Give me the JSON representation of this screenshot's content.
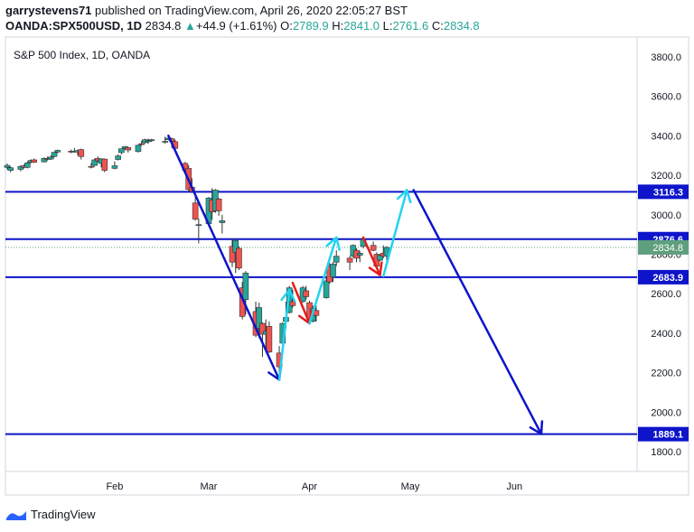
{
  "header": {
    "author": "garrystevens71",
    "published_text": "published on TradingView.com, April 26, 2020 22:05:27 BST",
    "symbol": "OANDA:SPX500USD, 1D",
    "last": "2834.8",
    "change_arrow": "▲",
    "change": "+44.9 (+1.61%)",
    "o_label": "O:",
    "o_value": "2789.9",
    "h_label": "H:",
    "h_value": "2841.0",
    "l_label": "L:",
    "l_value": "2761.6",
    "c_label": "C:",
    "c_value": "2834.8"
  },
  "footer": {
    "brand": "TradingView",
    "logo_icon": "tradingview-logo-icon"
  },
  "colors": {
    "up": "#26a69a",
    "down": "#ef5350",
    "line": "#0d14c9",
    "cyan": "#22d3f0",
    "red_arrow": "#e51b1b",
    "last_label": "#5e9f7d"
  },
  "chart_data": {
    "type": "candlestick",
    "title": "S&P 500 Index, 1D, OANDA",
    "x_labels": [
      "Feb",
      "Mar",
      "Apr",
      "May",
      "Jun"
    ],
    "y_ticks": [
      "3800.0",
      "3600.0",
      "3400.0",
      "3200.0",
      "3000.0",
      "2800.0",
      "2600.0",
      "2400.0",
      "2200.0",
      "2000.0",
      "1800.0"
    ],
    "ylim": [
      1700,
      3900
    ],
    "last_price_label": "2834.8",
    "horizontal_levels": [
      {
        "value": 3116.3,
        "label": "3116.3"
      },
      {
        "value": 2876.6,
        "label": "2876.6"
      },
      {
        "value": 2683.9,
        "label": "2683.9"
      },
      {
        "value": 1889.1,
        "label": "1889.1"
      }
    ],
    "candles": [
      {
        "d": "2020-01-02",
        "o": 3240,
        "h": 3260,
        "l": 3230,
        "c": 3250
      },
      {
        "d": "2020-01-03",
        "o": 3225,
        "h": 3245,
        "l": 3215,
        "c": 3238
      },
      {
        "d": "2020-01-06",
        "o": 3230,
        "h": 3250,
        "l": 3220,
        "c": 3245
      },
      {
        "d": "2020-01-07",
        "o": 3248,
        "h": 3255,
        "l": 3235,
        "c": 3240
      },
      {
        "d": "2020-01-08",
        "o": 3240,
        "h": 3270,
        "l": 3235,
        "c": 3262
      },
      {
        "d": "2020-01-09",
        "o": 3265,
        "h": 3280,
        "l": 3260,
        "c": 3275
      },
      {
        "d": "2020-01-10",
        "o": 3278,
        "h": 3285,
        "l": 3262,
        "c": 3266
      },
      {
        "d": "2020-01-13",
        "o": 3268,
        "h": 3290,
        "l": 3265,
        "c": 3286
      },
      {
        "d": "2020-01-14",
        "o": 3285,
        "h": 3295,
        "l": 3275,
        "c": 3282
      },
      {
        "d": "2020-01-15",
        "o": 3282,
        "h": 3300,
        "l": 3278,
        "c": 3292
      },
      {
        "d": "2020-01-16",
        "o": 3295,
        "h": 3318,
        "l": 3292,
        "c": 3316
      },
      {
        "d": "2020-01-17",
        "o": 3318,
        "h": 3330,
        "l": 3312,
        "c": 3326
      },
      {
        "d": "2020-01-21",
        "o": 3322,
        "h": 3330,
        "l": 3312,
        "c": 3320
      },
      {
        "d": "2020-01-22",
        "o": 3322,
        "h": 3338,
        "l": 3315,
        "c": 3322
      },
      {
        "d": "2020-01-23",
        "o": 3318,
        "h": 3330,
        "l": 3300,
        "c": 3325
      },
      {
        "d": "2020-01-24",
        "o": 3330,
        "h": 3335,
        "l": 3280,
        "c": 3295
      },
      {
        "d": "2020-01-27",
        "o": 3245,
        "h": 3262,
        "l": 3235,
        "c": 3244
      },
      {
        "d": "2020-01-28",
        "o": 3250,
        "h": 3285,
        "l": 3245,
        "c": 3278
      },
      {
        "d": "2020-01-29",
        "o": 3285,
        "h": 3295,
        "l": 3265,
        "c": 3273
      },
      {
        "d": "2020-01-30",
        "o": 3260,
        "h": 3285,
        "l": 3240,
        "c": 3283
      },
      {
        "d": "2020-01-31",
        "o": 3282,
        "h": 3285,
        "l": 3215,
        "c": 3225
      },
      {
        "d": "2020-02-03",
        "o": 3235,
        "h": 3270,
        "l": 3230,
        "c": 3248
      },
      {
        "d": "2020-02-04",
        "o": 3280,
        "h": 3305,
        "l": 3275,
        "c": 3298
      },
      {
        "d": "2020-02-05",
        "o": 3315,
        "h": 3335,
        "l": 3305,
        "c": 3334
      },
      {
        "d": "2020-02-06",
        "o": 3335,
        "h": 3348,
        "l": 3330,
        "c": 3345
      },
      {
        "d": "2020-02-07",
        "o": 3340,
        "h": 3345,
        "l": 3315,
        "c": 3328
      },
      {
        "d": "2020-02-10",
        "o": 3320,
        "h": 3355,
        "l": 3315,
        "c": 3352
      },
      {
        "d": "2020-02-11",
        "o": 3360,
        "h": 3375,
        "l": 3350,
        "c": 3358
      },
      {
        "d": "2020-02-12",
        "o": 3365,
        "h": 3385,
        "l": 3360,
        "c": 3380
      },
      {
        "d": "2020-02-13",
        "o": 3370,
        "h": 3385,
        "l": 3360,
        "c": 3375
      },
      {
        "d": "2020-02-14",
        "o": 3378,
        "h": 3385,
        "l": 3370,
        "c": 3380
      },
      {
        "d": "2020-02-18",
        "o": 3370,
        "h": 3395,
        "l": 3360,
        "c": 3372
      },
      {
        "d": "2020-02-19",
        "o": 3380,
        "h": 3395,
        "l": 3378,
        "c": 3388
      },
      {
        "d": "2020-02-20",
        "o": 3385,
        "h": 3390,
        "l": 3340,
        "c": 3372
      },
      {
        "d": "2020-02-21",
        "o": 3370,
        "h": 3380,
        "l": 3320,
        "c": 3336
      },
      {
        "d": "2020-02-24",
        "o": 3260,
        "h": 3268,
        "l": 3215,
        "c": 3225
      },
      {
        "d": "2020-02-25",
        "o": 3235,
        "h": 3250,
        "l": 3120,
        "c": 3128
      },
      {
        "d": "2020-02-26",
        "o": 3140,
        "h": 3185,
        "l": 3110,
        "c": 3118
      },
      {
        "d": "2020-02-27",
        "o": 3060,
        "h": 3090,
        "l": 2970,
        "c": 2978
      },
      {
        "d": "2020-02-28",
        "o": 2950,
        "h": 2980,
        "l": 2855,
        "c": 2950
      },
      {
        "d": "2020-03-02",
        "o": 2955,
        "h": 3090,
        "l": 2945,
        "c": 3085
      },
      {
        "d": "2020-03-03",
        "o": 3075,
        "h": 3135,
        "l": 2975,
        "c": 3015
      },
      {
        "d": "2020-03-04",
        "o": 3020,
        "h": 3130,
        "l": 3010,
        "c": 3125
      },
      {
        "d": "2020-03-05",
        "o": 3080,
        "h": 3085,
        "l": 2995,
        "c": 3020
      },
      {
        "d": "2020-03-06",
        "o": 2960,
        "h": 3000,
        "l": 2905,
        "c": 2970
      },
      {
        "d": "2020-03-09",
        "o": 2840,
        "h": 2880,
        "l": 2735,
        "c": 2760
      },
      {
        "d": "2020-03-10",
        "o": 2810,
        "h": 2880,
        "l": 2705,
        "c": 2870
      },
      {
        "d": "2020-03-11",
        "o": 2830,
        "h": 2840,
        "l": 2720,
        "c": 2730
      },
      {
        "d": "2020-03-12",
        "o": 2630,
        "h": 2660,
        "l": 2470,
        "c": 2485
      },
      {
        "d": "2020-03-13",
        "o": 2570,
        "h": 2715,
        "l": 2495,
        "c": 2705
      },
      {
        "d": "2020-03-16",
        "o": 2510,
        "h": 2560,
        "l": 2380,
        "c": 2390
      },
      {
        "d": "2020-03-17",
        "o": 2425,
        "h": 2555,
        "l": 2375,
        "c": 2530
      },
      {
        "d": "2020-03-18",
        "o": 2450,
        "h": 2455,
        "l": 2280,
        "c": 2395
      },
      {
        "d": "2020-03-19",
        "o": 2395,
        "h": 2470,
        "l": 2315,
        "c": 2410
      },
      {
        "d": "2020-03-20",
        "o": 2435,
        "h": 2460,
        "l": 2300,
        "c": 2305
      },
      {
        "d": "2020-03-23",
        "o": 2300,
        "h": 2335,
        "l": 2190,
        "c": 2230
      },
      {
        "d": "2020-03-24",
        "o": 2350,
        "h": 2455,
        "l": 2345,
        "c": 2450
      },
      {
        "d": "2020-03-25",
        "o": 2460,
        "h": 2560,
        "l": 2425,
        "c": 2480
      },
      {
        "d": "2020-03-26",
        "o": 2505,
        "h": 2640,
        "l": 2500,
        "c": 2630
      },
      {
        "d": "2020-03-27",
        "o": 2560,
        "h": 2620,
        "l": 2530,
        "c": 2540
      },
      {
        "d": "2020-03-30",
        "o": 2560,
        "h": 2640,
        "l": 2555,
        "c": 2630
      },
      {
        "d": "2020-03-31",
        "o": 2615,
        "h": 2640,
        "l": 2570,
        "c": 2585
      },
      {
        "d": "2020-04-01",
        "o": 2555,
        "h": 2565,
        "l": 2445,
        "c": 2470
      },
      {
        "d": "2020-04-02",
        "o": 2460,
        "h": 2540,
        "l": 2455,
        "c": 2525
      },
      {
        "d": "2020-04-03",
        "o": 2515,
        "h": 2540,
        "l": 2460,
        "c": 2490
      },
      {
        "d": "2020-04-06",
        "o": 2580,
        "h": 2680,
        "l": 2575,
        "c": 2665
      },
      {
        "d": "2020-04-07",
        "o": 2740,
        "h": 2755,
        "l": 2650,
        "c": 2660
      },
      {
        "d": "2020-04-08",
        "o": 2685,
        "h": 2760,
        "l": 2660,
        "c": 2750
      },
      {
        "d": "2020-04-09",
        "o": 2760,
        "h": 2820,
        "l": 2740,
        "c": 2790
      },
      {
        "d": "2020-04-13",
        "o": 2780,
        "h": 2790,
        "l": 2720,
        "c": 2760
      },
      {
        "d": "2020-04-14",
        "o": 2790,
        "h": 2850,
        "l": 2785,
        "c": 2845
      },
      {
        "d": "2020-04-15",
        "o": 2820,
        "h": 2830,
        "l": 2760,
        "c": 2780
      },
      {
        "d": "2020-04-16",
        "o": 2795,
        "h": 2815,
        "l": 2760,
        "c": 2805
      },
      {
        "d": "2020-04-17",
        "o": 2840,
        "h": 2880,
        "l": 2830,
        "c": 2875
      },
      {
        "d": "2020-04-20",
        "o": 2845,
        "h": 2865,
        "l": 2815,
        "c": 2820
      },
      {
        "d": "2020-04-21",
        "o": 2800,
        "h": 2810,
        "l": 2730,
        "c": 2740
      },
      {
        "d": "2020-04-22",
        "o": 2770,
        "h": 2800,
        "l": 2765,
        "c": 2795
      },
      {
        "d": "2020-04-23",
        "o": 2805,
        "h": 2845,
        "l": 2780,
        "c": 2790
      },
      {
        "d": "2020-04-24",
        "o": 2789.9,
        "h": 2841.0,
        "l": 2761.6,
        "c": 2834.8
      }
    ],
    "drawings": [
      {
        "color": "line",
        "points": [
          [
            "2020-02-19",
            3400
          ],
          [
            "2020-03-23",
            2165
          ]
        ],
        "arrow": true
      },
      {
        "color": "cyan",
        "points": [
          [
            "2020-03-23",
            2165
          ],
          [
            "2020-03-26",
            2620
          ]
        ],
        "arrow": true
      },
      {
        "color": "red_arrow",
        "points": [
          [
            "2020-03-27",
            2655
          ],
          [
            "2020-04-01",
            2450
          ]
        ],
        "arrow": true
      },
      {
        "color": "cyan",
        "points": [
          [
            "2020-04-01",
            2450
          ],
          [
            "2020-04-09",
            2885
          ]
        ],
        "arrow": true
      },
      {
        "color": "red_arrow",
        "points": [
          [
            "2020-04-17",
            2885
          ],
          [
            "2020-04-22",
            2695
          ]
        ],
        "arrow": true
      },
      {
        "color": "cyan",
        "points": [
          [
            "2020-04-23",
            2690
          ],
          [
            "2020-04-30",
            3125
          ]
        ],
        "arrow": true
      },
      {
        "color": "line",
        "points": [
          [
            "2020-05-02",
            3125
          ],
          [
            "2020-06-09",
            1890
          ]
        ],
        "arrow": true
      }
    ]
  }
}
